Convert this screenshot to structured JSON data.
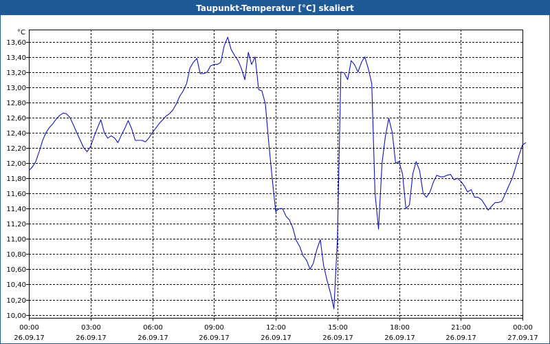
{
  "window": {
    "title": "Taupunkt-Temperatur [°C] skaliert"
  },
  "colors": {
    "title_bar": "#1e5a96",
    "series_line": "#1010c0",
    "grid": "#000000",
    "background": "#ffffff"
  },
  "chart_data": {
    "type": "line",
    "title": "Taupunkt-Temperatur [°C] skaliert",
    "ylabel": "°C",
    "xlabel": "",
    "ylim": [
      9.96,
      13.76
    ],
    "grid": true,
    "y_ticks": [
      "13,60",
      "13,40",
      "13,20",
      "13,00",
      "12,80",
      "12,60",
      "12,40",
      "12,20",
      "12,00",
      "11,80",
      "11,60",
      "11,40",
      "11,20",
      "11,00",
      "10,80",
      "10,60",
      "10,40",
      "10,20",
      "10,00"
    ],
    "y_tick_values": [
      13.6,
      13.4,
      13.2,
      13.0,
      12.8,
      12.6,
      12.4,
      12.2,
      12.0,
      11.8,
      11.6,
      11.4,
      11.2,
      11.0,
      10.8,
      10.6,
      10.4,
      10.2,
      10.0
    ],
    "x_ticks": [
      {
        "time": "00:00",
        "date": "26.09.17",
        "hour": 0
      },
      {
        "time": "03:00",
        "date": "26.09.17",
        "hour": 3
      },
      {
        "time": "06:00",
        "date": "26.09.17",
        "hour": 6
      },
      {
        "time": "09:00",
        "date": "26.09.17",
        "hour": 9
      },
      {
        "time": "12:00",
        "date": "26.09.17",
        "hour": 12
      },
      {
        "time": "15:00",
        "date": "26.09.17",
        "hour": 15
      },
      {
        "time": "18:00",
        "date": "26.09.17",
        "hour": 18
      },
      {
        "time": "21:00",
        "date": "26.09.17",
        "hour": 21
      },
      {
        "time": "00:00",
        "date": "27.09.17",
        "hour": 24
      }
    ],
    "series": [
      {
        "values": [
          [
            0.0,
            11.9
          ],
          [
            0.17,
            11.95
          ],
          [
            0.33,
            12.02
          ],
          [
            0.5,
            12.15
          ],
          [
            0.67,
            12.3
          ],
          [
            0.83,
            12.4
          ],
          [
            1.0,
            12.47
          ],
          [
            1.17,
            12.52
          ],
          [
            1.33,
            12.58
          ],
          [
            1.5,
            12.63
          ],
          [
            1.67,
            12.66
          ],
          [
            1.83,
            12.65
          ],
          [
            2.0,
            12.6
          ],
          [
            2.17,
            12.5
          ],
          [
            2.33,
            12.4
          ],
          [
            2.5,
            12.3
          ],
          [
            2.67,
            12.2
          ],
          [
            2.83,
            12.15
          ],
          [
            3.0,
            12.22
          ],
          [
            3.17,
            12.35
          ],
          [
            3.33,
            12.46
          ],
          [
            3.5,
            12.57
          ],
          [
            3.67,
            12.4
          ],
          [
            3.83,
            12.33
          ],
          [
            4.0,
            12.36
          ],
          [
            4.17,
            12.33
          ],
          [
            4.33,
            12.27
          ],
          [
            4.5,
            12.37
          ],
          [
            4.67,
            12.46
          ],
          [
            4.83,
            12.56
          ],
          [
            5.0,
            12.45
          ],
          [
            5.17,
            12.3
          ],
          [
            5.33,
            12.3
          ],
          [
            5.5,
            12.3
          ],
          [
            5.67,
            12.28
          ],
          [
            5.83,
            12.33
          ],
          [
            6.0,
            12.4
          ],
          [
            6.17,
            12.46
          ],
          [
            6.33,
            12.52
          ],
          [
            6.5,
            12.57
          ],
          [
            6.67,
            12.62
          ],
          [
            6.83,
            12.65
          ],
          [
            7.0,
            12.7
          ],
          [
            7.17,
            12.78
          ],
          [
            7.33,
            12.88
          ],
          [
            7.5,
            12.95
          ],
          [
            7.67,
            13.05
          ],
          [
            7.83,
            13.25
          ],
          [
            8.0,
            13.33
          ],
          [
            8.17,
            13.38
          ],
          [
            8.33,
            13.18
          ],
          [
            8.5,
            13.18
          ],
          [
            8.67,
            13.2
          ],
          [
            8.83,
            13.28
          ],
          [
            9.0,
            13.3
          ],
          [
            9.17,
            13.3
          ],
          [
            9.33,
            13.33
          ],
          [
            9.5,
            13.55
          ],
          [
            9.67,
            13.66
          ],
          [
            9.83,
            13.5
          ],
          [
            10.0,
            13.42
          ],
          [
            10.17,
            13.35
          ],
          [
            10.33,
            13.25
          ],
          [
            10.5,
            13.1
          ],
          [
            10.67,
            13.46
          ],
          [
            10.83,
            13.3
          ],
          [
            11.0,
            13.4
          ],
          [
            11.17,
            12.97
          ],
          [
            11.33,
            12.95
          ],
          [
            11.5,
            12.78
          ],
          [
            11.67,
            12.25
          ],
          [
            11.83,
            11.8
          ],
          [
            12.0,
            11.36
          ],
          [
            12.17,
            11.4
          ],
          [
            12.33,
            11.4
          ],
          [
            12.5,
            11.3
          ],
          [
            12.67,
            11.25
          ],
          [
            12.83,
            11.15
          ],
          [
            13.0,
            10.98
          ],
          [
            13.17,
            10.9
          ],
          [
            13.33,
            10.78
          ],
          [
            13.5,
            10.72
          ],
          [
            13.67,
            10.6
          ],
          [
            13.83,
            10.68
          ],
          [
            14.0,
            10.86
          ],
          [
            14.17,
            10.99
          ],
          [
            14.33,
            10.65
          ],
          [
            14.5,
            10.45
          ],
          [
            14.67,
            10.28
          ],
          [
            14.83,
            10.08
          ],
          [
            15.0,
            11.0
          ],
          [
            15.17,
            13.2
          ],
          [
            15.33,
            13.19
          ],
          [
            15.5,
            13.1
          ],
          [
            15.67,
            13.35
          ],
          [
            15.83,
            13.3
          ],
          [
            16.0,
            13.2
          ],
          [
            16.17,
            13.33
          ],
          [
            16.33,
            13.4
          ],
          [
            16.5,
            13.25
          ],
          [
            16.67,
            13.05
          ],
          [
            16.83,
            11.6
          ],
          [
            17.0,
            11.13
          ],
          [
            17.17,
            12.0
          ],
          [
            17.33,
            12.35
          ],
          [
            17.5,
            12.59
          ],
          [
            17.67,
            12.4
          ],
          [
            17.83,
            12.0
          ],
          [
            18.0,
            12.02
          ],
          [
            18.17,
            11.85
          ],
          [
            18.33,
            11.4
          ],
          [
            18.5,
            11.45
          ],
          [
            18.67,
            11.86
          ],
          [
            18.83,
            12.02
          ],
          [
            19.0,
            11.9
          ],
          [
            19.17,
            11.6
          ],
          [
            19.33,
            11.55
          ],
          [
            19.5,
            11.62
          ],
          [
            19.67,
            11.75
          ],
          [
            19.83,
            11.84
          ],
          [
            20.0,
            11.82
          ],
          [
            20.17,
            11.82
          ],
          [
            20.33,
            11.84
          ],
          [
            20.5,
            11.85
          ],
          [
            20.67,
            11.78
          ],
          [
            20.83,
            11.8
          ],
          [
            21.0,
            11.76
          ],
          [
            21.17,
            11.7
          ],
          [
            21.33,
            11.62
          ],
          [
            21.5,
            11.65
          ],
          [
            21.67,
            11.55
          ],
          [
            21.83,
            11.55
          ],
          [
            22.0,
            11.52
          ],
          [
            22.17,
            11.45
          ],
          [
            22.33,
            11.38
          ],
          [
            22.5,
            11.43
          ],
          [
            22.67,
            11.48
          ],
          [
            22.83,
            11.48
          ],
          [
            23.0,
            11.5
          ],
          [
            23.17,
            11.6
          ],
          [
            23.33,
            11.7
          ],
          [
            23.5,
            11.8
          ],
          [
            23.67,
            11.95
          ],
          [
            23.83,
            12.1
          ],
          [
            24.0,
            12.24
          ],
          [
            24.17,
            12.27
          ]
        ]
      }
    ]
  }
}
